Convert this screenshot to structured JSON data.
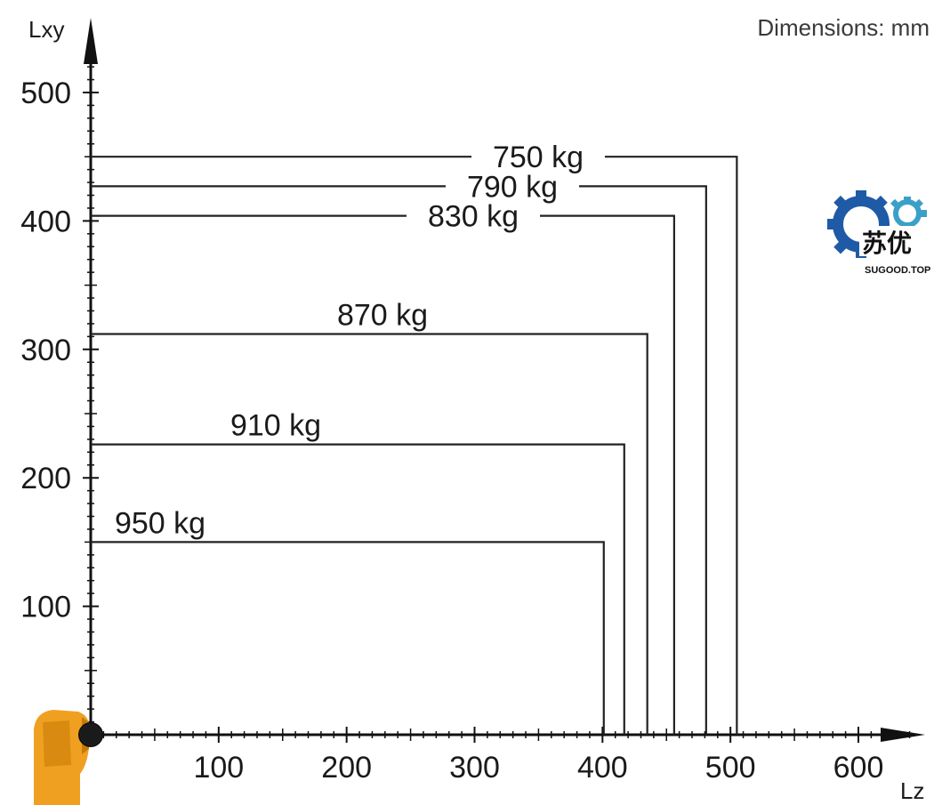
{
  "units_note": "Dimensions: mm",
  "logo": {
    "text_cn": "苏优",
    "url": "SUGOOD.TOP",
    "colors": {
      "gear_dark": "#1f5aa6",
      "gear_light": "#3ba0c8"
    }
  },
  "robot_icon": {
    "name": "robot-arm-icon",
    "color": "#f0a020"
  },
  "chart_data": {
    "type": "line",
    "title": "",
    "xlabel": "Lz",
    "ylabel": "Lxy",
    "xlim": [
      0,
      600
    ],
    "ylim": [
      0,
      500
    ],
    "x_ticks": [
      100,
      200,
      300,
      400,
      500,
      600
    ],
    "y_ticks": [
      100,
      200,
      300,
      400,
      500
    ],
    "grid": false,
    "series": [
      {
        "name": "750 kg",
        "lz": 505,
        "lxy": 450
      },
      {
        "name": "790 kg",
        "lz": 481,
        "lxy": 427
      },
      {
        "name": "830 kg",
        "lz": 456,
        "lxy": 404
      },
      {
        "name": "870 kg",
        "lz": 435,
        "lxy": 312
      },
      {
        "name": "910 kg",
        "lz": 417,
        "lxy": 226
      },
      {
        "name": "950 kg",
        "lz": 401,
        "lxy": 150
      }
    ]
  }
}
